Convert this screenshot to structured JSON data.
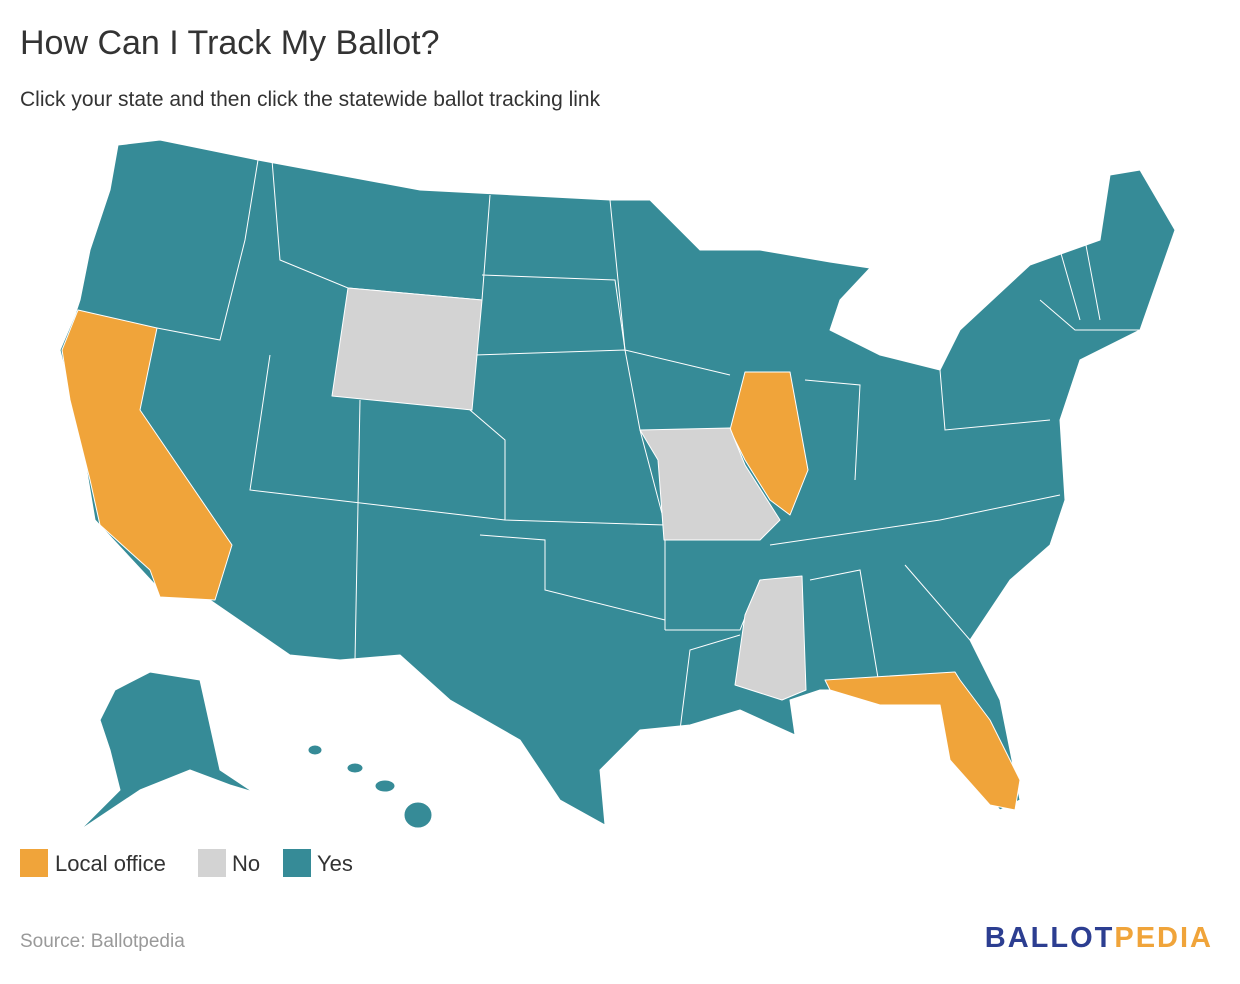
{
  "header": {
    "title": "How Can I Track My Ballot?",
    "subtitle": "Click your state and then click the statewide ballot tracking link"
  },
  "legend": {
    "items": [
      {
        "name": "Local office",
        "color": "#f0a43a"
      },
      {
        "name": "No",
        "color": "#d3d3d3"
      },
      {
        "name": "Yes",
        "color": "#368b97"
      }
    ]
  },
  "footer": {
    "source": "Source: Ballotpedia",
    "logo": {
      "first": "BALLOT",
      "second": "PEDIA"
    }
  }
}
